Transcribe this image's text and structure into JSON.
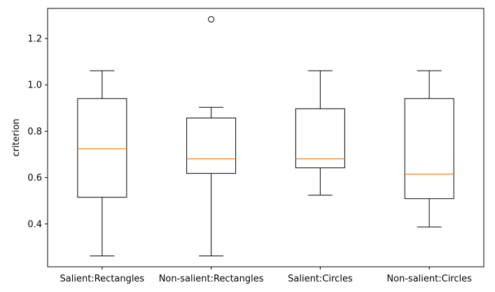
{
  "chart_data": {
    "type": "boxplot",
    "title": "",
    "xlabel": "",
    "ylabel": "criterion",
    "ylim": [
      0.215,
      1.33
    ],
    "y_ticks": [
      0.4,
      0.6,
      0.8,
      1.0,
      1.2
    ],
    "y_tick_labels": [
      "0.4",
      "0.6",
      "0.8",
      "1.0",
      "1.2"
    ],
    "grid": false,
    "legend": "none",
    "colors": {
      "box": "#000000",
      "median": "#ff7f0e",
      "flier": "#000000"
    },
    "categories": [
      "Salient:Rectangles",
      "Non-salient:Rectangles",
      "Salient:Circles",
      "Non-salient:Circles"
    ],
    "boxes": [
      {
        "category": "Salient:Rectangles",
        "whisker_low": 0.262,
        "q1": 0.515,
        "median": 0.724,
        "q3": 0.941,
        "whisker_high": 1.061,
        "fliers": []
      },
      {
        "category": "Non-salient:Rectangles",
        "whisker_low": 0.262,
        "q1": 0.618,
        "median": 0.681,
        "q3": 0.857,
        "whisker_high": 0.903,
        "fliers": [
          1.283
        ]
      },
      {
        "category": "Salient:Circles",
        "whisker_low": 0.524,
        "q1": 0.642,
        "median": 0.681,
        "q3": 0.897,
        "whisker_high": 1.061,
        "fliers": []
      },
      {
        "category": "Non-salient:Circles",
        "whisker_low": 0.387,
        "q1": 0.509,
        "median": 0.615,
        "q3": 0.941,
        "whisker_high": 1.061,
        "fliers": []
      }
    ]
  }
}
